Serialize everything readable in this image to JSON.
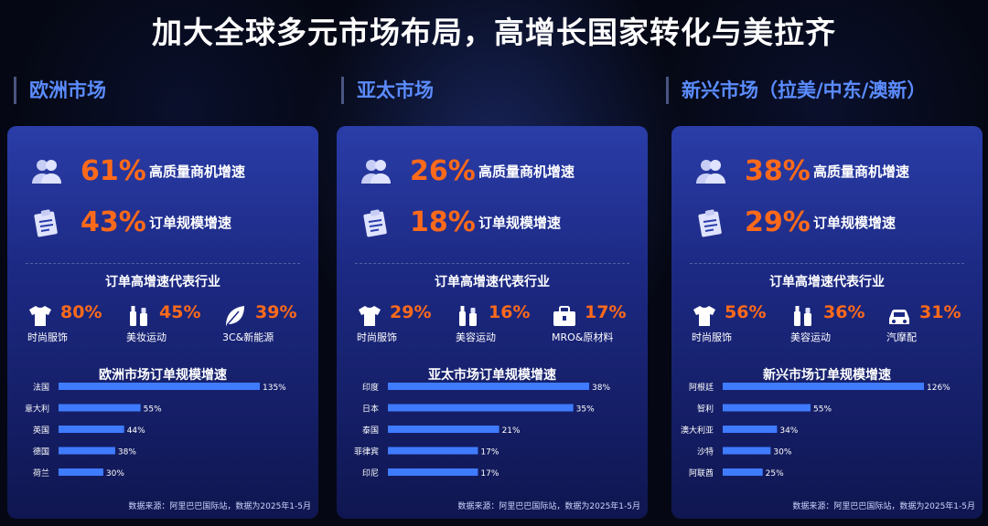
{
  "title": "加大全球多元市场布局，高增长国家转化与美拉齐",
  "source_note": "数据来源：阿里巴巴国际站，数据为2025年1-5月",
  "regions": [
    {
      "name": "欧洲市场",
      "stats": [
        {
          "icon": "people-icon",
          "value": "61%",
          "label": "高质量商机增速"
        },
        {
          "icon": "clipboard-icon",
          "value": "43%",
          "label": "订单规模增速"
        }
      ],
      "industry_title": "订单高增速代表行业",
      "industries": [
        {
          "icon": "tshirt-icon",
          "value": "80%",
          "label": "时尚服饰"
        },
        {
          "icon": "cosmetics-icon",
          "value": "45%",
          "label": "美妆运动"
        },
        {
          "icon": "leaf-icon",
          "value": "39%",
          "label": "3C&新能源"
        }
      ],
      "chart_title": "欧洲市场订单规模增速"
    },
    {
      "name": "亚太市场",
      "stats": [
        {
          "icon": "people-icon",
          "value": "26%",
          "label": "高质量商机增速"
        },
        {
          "icon": "clipboard-icon",
          "value": "18%",
          "label": "订单规模增速"
        }
      ],
      "industry_title": "订单高增速代表行业",
      "industries": [
        {
          "icon": "tshirt-icon",
          "value": "29%",
          "label": "时尚服饰"
        },
        {
          "icon": "cosmetics-icon",
          "value": "16%",
          "label": "美容运动"
        },
        {
          "icon": "toolbox-icon",
          "value": "17%",
          "label": "MRO&原材料"
        }
      ],
      "chart_title": "亚太市场订单规模增速"
    },
    {
      "name": "新兴市场（拉美/中东/澳新）",
      "stats": [
        {
          "icon": "people-icon",
          "value": "38%",
          "label": "高质量商机增速"
        },
        {
          "icon": "clipboard-icon",
          "value": "29%",
          "label": "订单规模增速"
        }
      ],
      "industry_title": "订单高增速代表行业",
      "industries": [
        {
          "icon": "tshirt-icon",
          "value": "56%",
          "label": "时尚服饰"
        },
        {
          "icon": "cosmetics-icon",
          "value": "36%",
          "label": "美容运动"
        },
        {
          "icon": "car-icon",
          "value": "31%",
          "label": "汽摩配"
        }
      ],
      "chart_title": "新兴市场订单规模增速"
    }
  ],
  "chart_data": [
    {
      "type": "bar",
      "orientation": "horizontal",
      "title": "欧洲市场订单规模增速",
      "categories": [
        "法国",
        "意大利",
        "英国",
        "德国",
        "荷兰"
      ],
      "values": [
        135,
        55,
        44,
        38,
        30
      ],
      "value_labels": [
        "135%",
        "55%",
        "44%",
        "38%",
        "30%"
      ],
      "unit": "%",
      "color": "#3f7bff"
    },
    {
      "type": "bar",
      "orientation": "horizontal",
      "title": "亚太市场订单规模增速",
      "categories": [
        "印度",
        "日本",
        "泰国",
        "菲律宾",
        "印尼"
      ],
      "values": [
        38,
        35,
        21,
        17,
        17
      ],
      "value_labels": [
        "38%",
        "35%",
        "21%",
        "17%",
        "17%"
      ],
      "unit": "%",
      "color": "#3f7bff"
    },
    {
      "type": "bar",
      "orientation": "horizontal",
      "title": "新兴市场订单规模增速",
      "categories": [
        "阿根廷",
        "智利",
        "澳大利亚",
        "沙特",
        "阿联酋"
      ],
      "values": [
        126,
        55,
        34,
        30,
        25
      ],
      "value_labels": [
        "126%",
        "55%",
        "34%",
        "30%",
        "25%"
      ],
      "unit": "%",
      "color": "#3f7bff"
    }
  ]
}
